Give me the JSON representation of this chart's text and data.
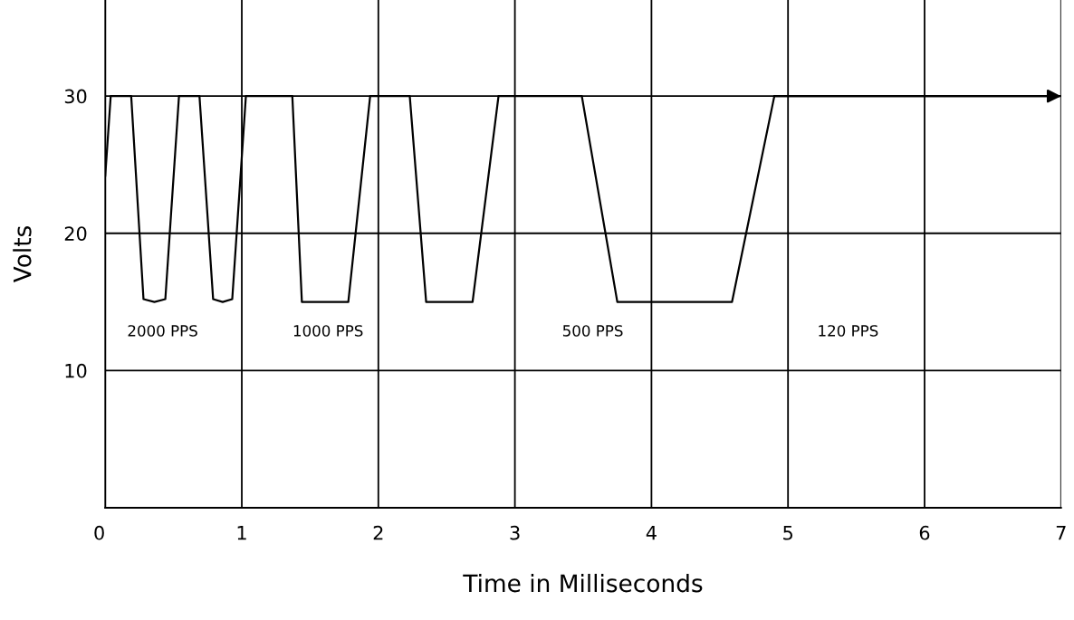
{
  "chart_data": {
    "type": "line",
    "xlabel": "Time in Milliseconds",
    "ylabel": "Volts",
    "x": [
      0,
      0.04,
      0.19,
      0.28,
      0.36,
      0.44,
      0.54,
      0.69,
      0.79,
      0.86,
      0.93,
      1.03,
      1.37,
      1.44,
      1.78,
      1.94,
      2.23,
      2.35,
      2.69,
      2.88,
      3.49,
      3.75,
      4.59,
      4.9,
      7
    ],
    "series": [
      {
        "color": "#000000",
        "values": [
          24.2,
          30,
          30,
          15.2,
          15,
          15.2,
          30,
          30,
          15.2,
          15,
          15.2,
          30,
          30,
          15,
          15,
          30,
          30,
          15,
          15,
          30,
          30,
          15,
          15,
          30,
          30
        ]
      }
    ],
    "xlim": [
      0,
      7
    ],
    "ylim": [
      0,
      37
    ],
    "xticks": [
      0,
      1,
      2,
      3,
      4,
      5,
      6,
      7
    ],
    "yticks": [
      {
        "value": 0,
        "label": null
      },
      10,
      20,
      30
    ],
    "grid": true,
    "marker": "none",
    "line_style": "solid",
    "annotations": [
      "2000 PPS",
      "1000 PPS",
      "500 PPS",
      "120 PPS"
    ]
  }
}
